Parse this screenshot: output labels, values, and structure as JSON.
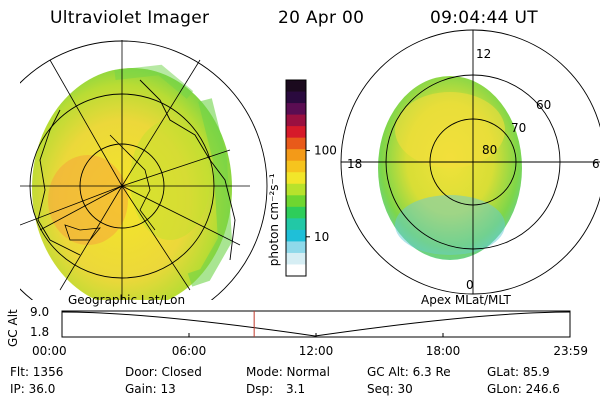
{
  "header": {
    "instrument": "Ultraviolet Imager",
    "date": "20 Apr 00",
    "time": "09:04:44 UT"
  },
  "left_panel": {
    "caption": "Geographic Lat/Lon"
  },
  "right_panel": {
    "caption": "Apex MLat/MLT",
    "mlt_labels": [
      "12",
      "18",
      "6",
      "0"
    ],
    "lat_labels": [
      "60",
      "70",
      "80"
    ]
  },
  "colorbar": {
    "unit_label": "photon cm⁻²s⁻¹",
    "ticks": [
      "100",
      "10"
    ],
    "colors": [
      "#1b0a1e",
      "#2a0a3e",
      "#5a0d52",
      "#9a1040",
      "#d61a2a",
      "#e85a1a",
      "#f39a18",
      "#f6c41e",
      "#f2e62a",
      "#b8e22c",
      "#6fd630",
      "#2ecd5a",
      "#22c8a6",
      "#1fbfd8",
      "#8fd9ea",
      "#d6eef4",
      "#ffffff"
    ]
  },
  "timeline": {
    "axis_label": "GC Alt",
    "y_ticks": [
      "9.0",
      "1.8"
    ],
    "x_ticks": [
      "00:00",
      "06:00",
      "12:00",
      "18:00",
      "23:59"
    ],
    "marker_color": "#c0392b"
  },
  "info": {
    "flt": "Flt: 1356",
    "ip": "IP: 36.0",
    "door": "Door: Closed",
    "gain": "Gain: 13",
    "mode": "Mode: Normal",
    "dsp_label": "Dsp:",
    "dsp_value": "3.1",
    "gc_alt": "GC Alt: 6.3 Re",
    "seq": "Seq: 30",
    "glat": "GLat: 85.9",
    "glon": "GLon: 246.6"
  }
}
